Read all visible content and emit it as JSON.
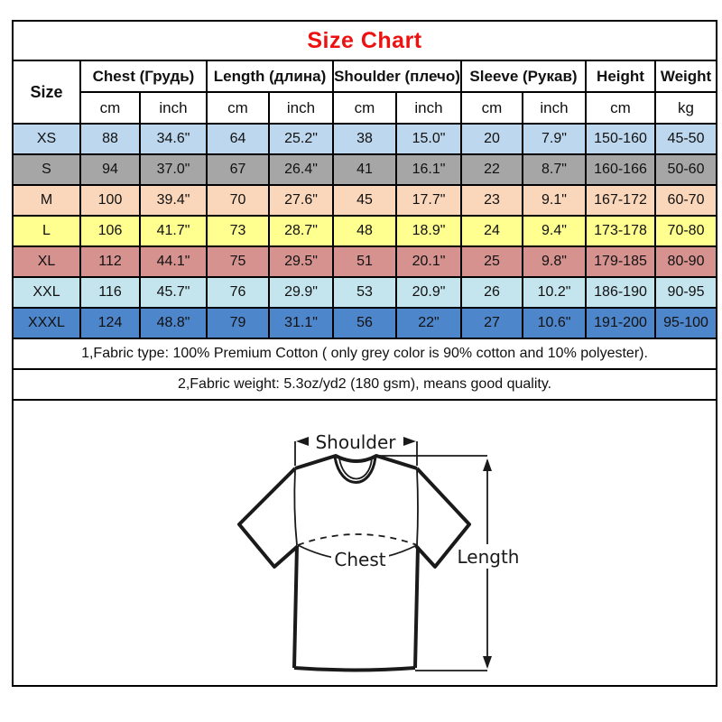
{
  "colors": {
    "title_red": "#EE1111",
    "border_black": "#000000",
    "row_xs_blue": "#BDD7EE",
    "row_s_grey": "#A6A6A6",
    "row_m_peach": "#FAD7BA",
    "row_l_yellow": "#FFFF8F",
    "row_xl_rose": "#D5928F",
    "row_xxl_cyan": "#C5E5EE",
    "row_xxxl_blue": "#4E86CB"
  },
  "chart_data": {
    "type": "table",
    "title": "Size Chart",
    "size_header": "Size",
    "column_groups": [
      {
        "label": "Chest  (Грудь)",
        "units": [
          "cm",
          "inch"
        ]
      },
      {
        "label": "Length (длина)",
        "units": [
          "cm",
          "inch"
        ]
      },
      {
        "label": "Shoulder (плечо)",
        "units": [
          "cm",
          "inch"
        ]
      },
      {
        "label": "Sleeve (Рукав)",
        "units": [
          "cm",
          "inch"
        ]
      },
      {
        "label": "Height",
        "units": [
          "cm"
        ]
      },
      {
        "label": "Weight",
        "units": [
          "kg"
        ]
      }
    ],
    "rows": [
      {
        "size": "XS",
        "row_color": "#BDD7EE",
        "values": [
          "88",
          "34.6\"",
          "64",
          "25.2\"",
          "38",
          "15.0\"",
          "20",
          "7.9\"",
          "150-160",
          "45-50"
        ]
      },
      {
        "size": "S",
        "row_color": "#A6A6A6",
        "values": [
          "94",
          "37.0\"",
          "67",
          "26.4\"",
          "41",
          "16.1\"",
          "22",
          "8.7\"",
          "160-166",
          "50-60"
        ]
      },
      {
        "size": "M",
        "row_color": "#FAD7BA",
        "values": [
          "100",
          "39.4\"",
          "70",
          "27.6\"",
          "45",
          "17.7\"",
          "23",
          "9.1\"",
          "167-172",
          "60-70"
        ]
      },
      {
        "size": "L",
        "row_color": "#FFFF8F",
        "values": [
          "106",
          "41.7\"",
          "73",
          "28.7\"",
          "48",
          "18.9\"",
          "24",
          "9.4\"",
          "173-178",
          "70-80"
        ]
      },
      {
        "size": "XL",
        "row_color": "#D5928F",
        "values": [
          "112",
          "44.1\"",
          "75",
          "29.5\"",
          "51",
          "20.1\"",
          "25",
          "9.8\"",
          "179-185",
          "80-90"
        ]
      },
      {
        "size": "XXL",
        "row_color": "#C5E5EE",
        "values": [
          "116",
          "45.7\"",
          "76",
          "29.9\"",
          "53",
          "20.9\"",
          "26",
          "10.2\"",
          "186-190",
          "90-95"
        ]
      },
      {
        "size": "XXXL",
        "row_color": "#4E86CB",
        "values": [
          "124",
          "48.8\"",
          "79",
          "31.1\"",
          "56",
          "22\"",
          "27",
          "10.6\"",
          "191-200",
          "95-100"
        ]
      }
    ]
  },
  "notes": [
    "1,Fabric type: 100% Premium Cotton ( only grey color is 90% cotton and 10% polyester).",
    "2,Fabric weight: 5.3oz/yd2 (180 gsm), means good quality."
  ],
  "diagram": {
    "shoulder_label": "Shoulder",
    "chest_label": "Chest",
    "length_label": "Length"
  }
}
